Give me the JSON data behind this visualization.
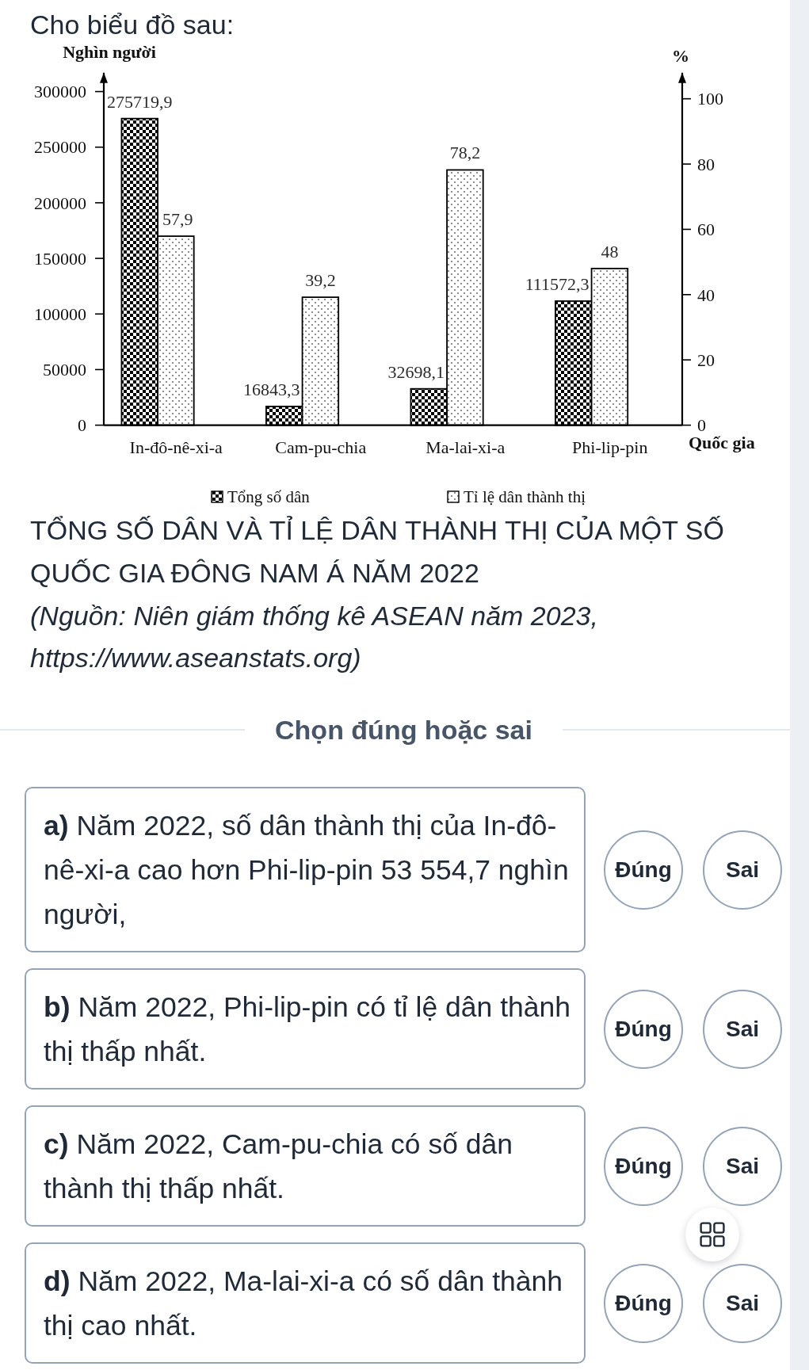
{
  "chart_data": {
    "type": "bar",
    "title": "TỔNG SỐ DÂN VÀ TỈ LỆ DÂN THÀNH THỊ CỦA MỘT SỐ QUỐC GIA ĐÔNG NAM Á NĂM 2022",
    "xlabel": "Quốc gia",
    "ylabel": "Nghìn người",
    "y2label": "%",
    "categories": [
      "In-đô-nê-xi-a",
      "Cam-pu-chia",
      "Ma-lai-xi-a",
      "Phi-lip-pin"
    ],
    "series": [
      {
        "name": "Tổng số dân",
        "color": "#000000",
        "values": [
          275719.9,
          16843.3,
          32698.1,
          111572.3
        ],
        "value_labels": [
          "275719,9",
          "16843,3",
          "32698,1",
          "111572,3"
        ]
      },
      {
        "name": "Tỉ lệ dân thành thị",
        "color": "#000000",
        "axis": "y2",
        "values": [
          57.9,
          39.2,
          78.2,
          48
        ],
        "value_labels": [
          "57,9",
          "39,2",
          "78,2",
          "48"
        ]
      }
    ],
    "ylim": [
      0,
      317000
    ],
    "yticks": [
      0,
      50000,
      100000,
      150000,
      200000,
      250000,
      300000
    ],
    "y2lim": [
      0,
      108
    ],
    "y2ticks": [
      0,
      20,
      40,
      60,
      80,
      100
    ],
    "legend": "bottom",
    "annotations": [
      "Cho biểu đồ sau:",
      "(Nguồn: Niên giám thống kê ASEAN năm 2023, https://www.aseanstats.org)",
      "Chọn đúng hoặc sai",
      "a) Năm 2022, số dân thành thị của In-đô-nê-xi-a cao hơn Phi-lip-pin 53 554,7 nghìn người,",
      "Đúng",
      "Sai",
      "b) Năm 2022, Phi-lip-pin có tỉ lệ dân thành thị thấp nhất.",
      "Đúng",
      "Sai",
      "c) Năm 2022, Cam-pu-chia có số dân thành thị thấp nhất.",
      "Đúng",
      "Sai",
      "d) Năm 2022, Ma-lai-xi-a có số dân thành thị cao nhất.",
      "Đúng",
      "Sai"
    ]
  }
}
